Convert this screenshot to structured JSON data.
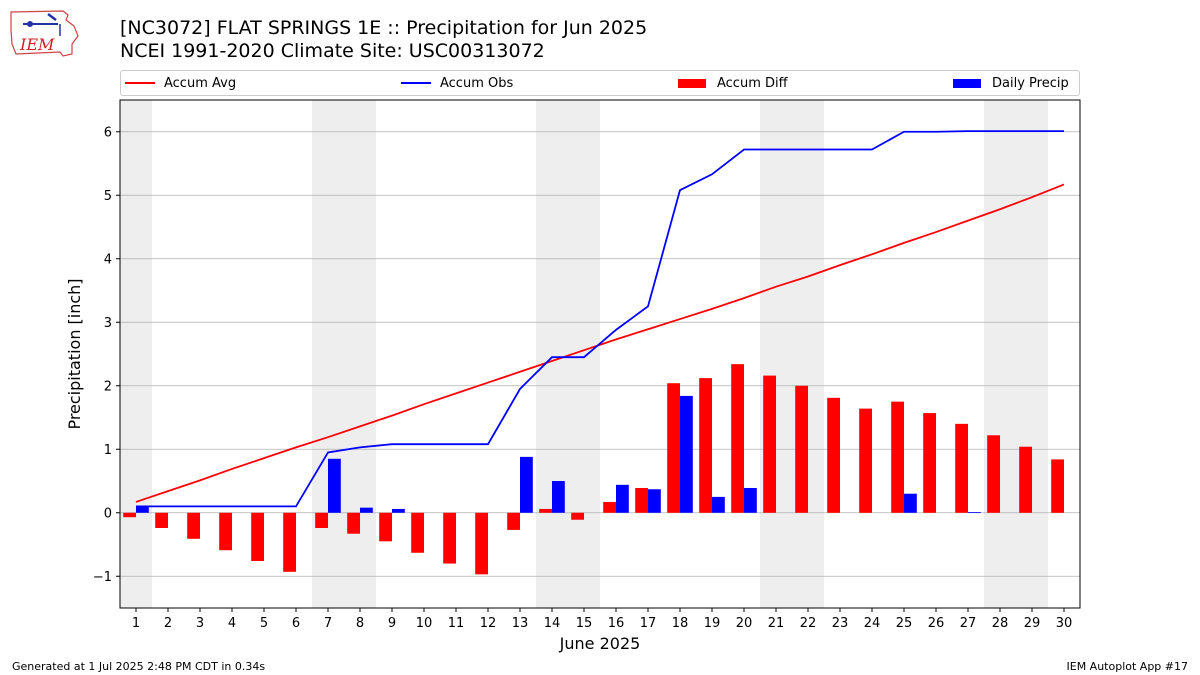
{
  "header": {
    "title_line1": "[NC3072] FLAT SPRINGS 1E :: Precipitation for Jun 2025",
    "title_line2": "NCEI 1991-2020 Climate Site: USC00313072",
    "logo_text": "IEM"
  },
  "footer": {
    "generated": "Generated at 1 Jul 2025 2:48 PM CDT in 0.34s",
    "app": "IEM Autoplot App #17"
  },
  "legend": [
    {
      "label": "Accum Avg",
      "kind": "line",
      "color": "#ff0000"
    },
    {
      "label": "Accum Obs",
      "kind": "line",
      "color": "#0000ff"
    },
    {
      "label": "Accum Diff",
      "kind": "bar",
      "color": "#ff0000"
    },
    {
      "label": "Daily Precip",
      "kind": "bar",
      "color": "#0000ff"
    }
  ],
  "chart_data": {
    "type": "bar",
    "xlabel": "June 2025",
    "ylabel": "Precipitation [inch]",
    "xlim": [
      0.5,
      30.5
    ],
    "ylim": [
      -1.5,
      6.5
    ],
    "yticks": [
      -1,
      0,
      1,
      2,
      3,
      4,
      5,
      6
    ],
    "ytick_labels": [
      "−1",
      "0",
      "1",
      "2",
      "3",
      "4",
      "5",
      "6"
    ],
    "grid": "horizontal",
    "legend_position": "top",
    "weekend_shading_days": [
      1,
      7,
      8,
      14,
      15,
      21,
      22,
      28,
      29
    ],
    "x": [
      1,
      2,
      3,
      4,
      5,
      6,
      7,
      8,
      9,
      10,
      11,
      12,
      13,
      14,
      15,
      16,
      17,
      18,
      19,
      20,
      21,
      22,
      23,
      24,
      25,
      26,
      27,
      28,
      29,
      30
    ],
    "series": [
      {
        "name": "Accum Avg",
        "type": "line",
        "color": "#ff0000",
        "values": [
          0.17,
          0.34,
          0.51,
          0.69,
          0.86,
          1.03,
          1.19,
          1.36,
          1.53,
          1.71,
          1.88,
          2.05,
          2.22,
          2.39,
          2.56,
          2.73,
          2.89,
          3.05,
          3.21,
          3.38,
          3.56,
          3.72,
          3.9,
          4.07,
          4.25,
          4.42,
          4.6,
          4.78,
          4.97,
          5.17
        ]
      },
      {
        "name": "Accum Obs",
        "type": "line",
        "color": "#0000ff",
        "values": [
          0.1,
          0.1,
          0.1,
          0.1,
          0.1,
          0.1,
          0.95,
          1.03,
          1.08,
          1.08,
          1.08,
          1.08,
          1.95,
          2.45,
          2.45,
          2.88,
          3.25,
          5.08,
          5.33,
          5.72,
          5.72,
          5.72,
          5.72,
          5.72,
          6.0,
          6.0,
          6.01,
          6.01,
          6.01,
          6.01
        ]
      },
      {
        "name": "Accum Diff",
        "type": "bar",
        "color": "#ff0000",
        "values": [
          -0.07,
          -0.24,
          -0.41,
          -0.59,
          -0.76,
          -0.93,
          -0.24,
          -0.33,
          -0.45,
          -0.63,
          -0.8,
          -0.97,
          -0.27,
          0.06,
          -0.11,
          0.17,
          0.39,
          2.04,
          2.12,
          2.34,
          2.16,
          2.0,
          1.81,
          1.64,
          1.75,
          1.57,
          1.4,
          1.22,
          1.04,
          0.84
        ]
      },
      {
        "name": "Daily Precip",
        "type": "bar",
        "color": "#0000ff",
        "values": [
          0.1,
          0,
          0,
          0,
          0,
          0,
          0.85,
          0.08,
          0.06,
          0,
          0,
          0,
          0.88,
          0.5,
          0,
          0.44,
          0.37,
          1.84,
          0.25,
          0.39,
          0,
          0,
          0,
          0,
          0.3,
          0,
          0.01,
          0,
          0,
          0
        ]
      }
    ]
  }
}
